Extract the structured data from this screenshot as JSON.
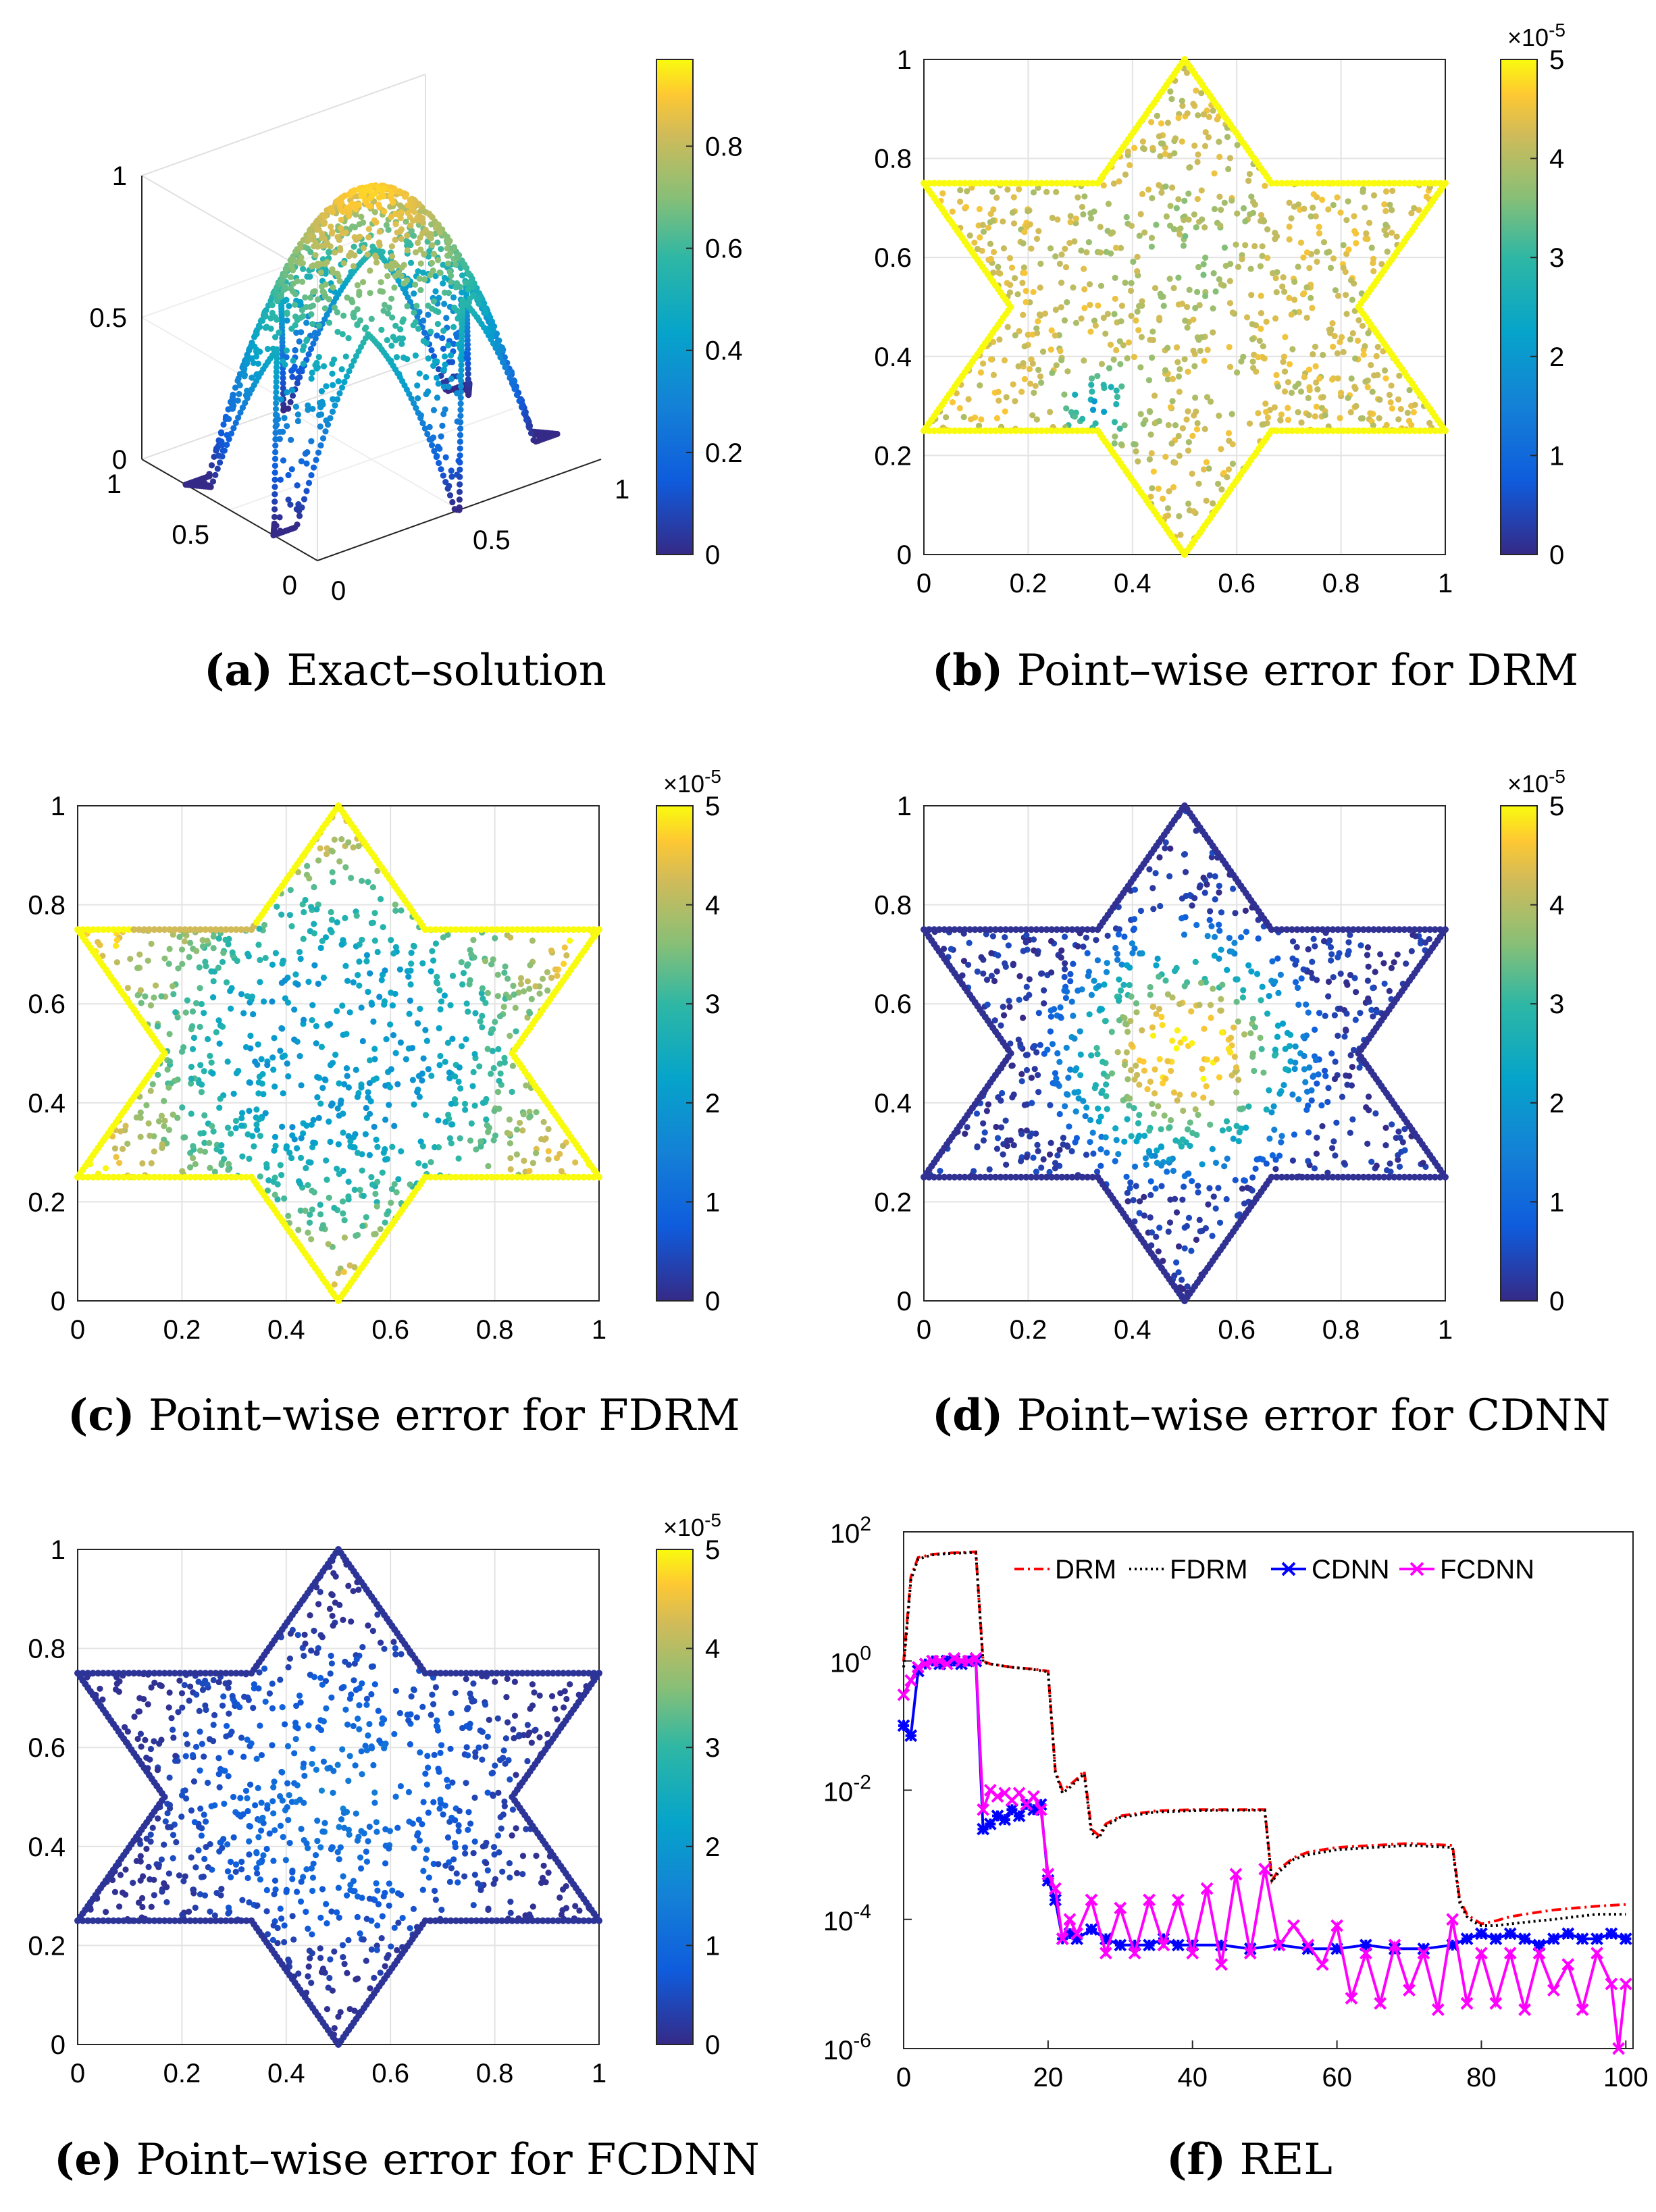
{
  "panels": [
    {
      "letter": "(a)",
      "caption": "Exact–solution",
      "kind": "surface3d",
      "chart_data": {
        "type": "scatter",
        "title": "",
        "z_ticks": [
          "0",
          "0.5",
          "1"
        ],
        "y_ticks": [
          "0",
          "0.5",
          "1"
        ],
        "x_ticks": [
          "0",
          "0.5",
          "1"
        ],
        "colorbar_ticks": [
          "0",
          "0.2",
          "0.4",
          "0.6",
          "0.8"
        ],
        "colorbar_range": [
          0,
          1
        ],
        "colorbar_exponent": ""
      }
    },
    {
      "letter": "(b)",
      "caption": "Point–wise error for DRM",
      "kind": "star",
      "chart_data": {
        "type": "scatter",
        "x_ticks": [
          "0",
          "0.2",
          "0.4",
          "0.6",
          "0.8",
          "1"
        ],
        "y_ticks": [
          "0",
          "0.2",
          "0.4",
          "0.6",
          "0.8",
          "1"
        ],
        "xlim": [
          0,
          1
        ],
        "ylim": [
          0,
          1
        ],
        "colorbar_ticks": [
          "0",
          "1",
          "2",
          "3",
          "4",
          "5"
        ],
        "colorbar_range": [
          0,
          5
        ],
        "colorbar_exponent": "×10-5",
        "error_pattern": "mostly high (yellow/orange); boundary saturated; low spot near lower-left interior"
      }
    },
    {
      "letter": "(c)",
      "caption": "Point–wise error for FDRM",
      "kind": "star",
      "chart_data": {
        "type": "scatter",
        "x_ticks": [
          "0",
          "0.2",
          "0.4",
          "0.6",
          "0.8",
          "1"
        ],
        "y_ticks": [
          "0",
          "0.2",
          "0.4",
          "0.6",
          "0.8",
          "1"
        ],
        "xlim": [
          0,
          1
        ],
        "ylim": [
          0,
          1
        ],
        "colorbar_ticks": [
          "0",
          "1",
          "2",
          "3",
          "4",
          "5"
        ],
        "colorbar_range": [
          0,
          5
        ],
        "colorbar_exponent": "×10-5",
        "error_pattern": "yellow boundary and tips; teal-blue interior"
      }
    },
    {
      "letter": "(d)",
      "caption": "Point–wise error for CDNN",
      "kind": "star",
      "chart_data": {
        "type": "scatter",
        "x_ticks": [
          "0",
          "0.2",
          "0.4",
          "0.6",
          "0.8",
          "1"
        ],
        "y_ticks": [
          "0",
          "0.2",
          "0.4",
          "0.6",
          "0.8",
          "1"
        ],
        "xlim": [
          0,
          1
        ],
        "ylim": [
          0,
          1
        ],
        "colorbar_ticks": [
          "0",
          "1",
          "2",
          "3",
          "4",
          "5"
        ],
        "colorbar_range": [
          0,
          5
        ],
        "colorbar_exponent": "×10-5",
        "error_pattern": "dark blue boundary and tips; yellow core near center"
      }
    },
    {
      "letter": "(e)",
      "caption": "Point–wise error for FCDNN",
      "kind": "star",
      "chart_data": {
        "type": "scatter",
        "x_ticks": [
          "0",
          "0.2",
          "0.4",
          "0.6",
          "0.8",
          "1"
        ],
        "y_ticks": [
          "0",
          "0.2",
          "0.4",
          "0.6",
          "0.8",
          "1"
        ],
        "xlim": [
          0,
          1
        ],
        "ylim": [
          0,
          1
        ],
        "colorbar_ticks": [
          "0",
          "1",
          "2",
          "3",
          "4",
          "5"
        ],
        "colorbar_range": [
          0,
          5
        ],
        "colorbar_exponent": "×10-5",
        "error_pattern": "uniformly low: dark blue boundary, blue interior"
      }
    },
    {
      "letter": "(f)",
      "caption": "REL",
      "kind": "line",
      "chart_data": {
        "type": "line",
        "x_ticks": [
          "0",
          "20",
          "40",
          "60",
          "80",
          "100"
        ],
        "xlim": [
          0,
          101
        ],
        "y_log": true,
        "ylim": [
          1e-06,
          100.0
        ],
        "y_ticks": [
          {
            "base": "10",
            "exp": "-6"
          },
          {
            "base": "10",
            "exp": "-4"
          },
          {
            "base": "10",
            "exp": "-2"
          },
          {
            "base": "10",
            "exp": "0"
          },
          {
            "base": "10",
            "exp": "2"
          }
        ],
        "legend_position": "top-right",
        "series": [
          {
            "name": "DRM",
            "color": "#ff0000",
            "style": "dash-dot",
            "x": [
              0,
              1,
              2,
              4,
              6,
              8,
              10,
              11,
              12,
              15,
              18,
              20,
              21,
              22,
              23,
              24,
              25,
              26,
              27,
              28,
              30,
              35,
              40,
              45,
              50,
              51,
              52,
              54,
              56,
              60,
              65,
              70,
              76,
              77,
              78,
              79,
              80,
              82,
              84,
              86,
              88,
              90,
              93,
              96,
              100
            ],
            "y": [
              1,
              20,
              40,
              45,
              47,
              48,
              49,
              1.0,
              0.9,
              0.8,
              0.75,
              0.7,
              0.02,
              0.01,
              0.012,
              0.015,
              0.02,
              0.0025,
              0.002,
              0.003,
              0.004,
              0.0048,
              0.005,
              0.005,
              0.005,
              0.0004,
              0.0006,
              0.0009,
              0.0011,
              0.0013,
              0.0014,
              0.0015,
              0.0014,
              0.0002,
              0.00012,
              0.0001,
              8.5e-05,
              9.5e-05,
              0.00011,
              0.00012,
              0.00013,
              0.00014,
              0.00015,
              0.00016,
              0.00017
            ]
          },
          {
            "name": "FDRM",
            "color": "#000000",
            "style": "dotted",
            "x": [
              0,
              1,
              2,
              4,
              6,
              8,
              10,
              11,
              12,
              15,
              18,
              20,
              21,
              22,
              23,
              24,
              25,
              26,
              27,
              28,
              30,
              35,
              40,
              45,
              50,
              51,
              52,
              54,
              56,
              60,
              65,
              70,
              76,
              77,
              78,
              79,
              80,
              82,
              84,
              86,
              88,
              90,
              93,
              96,
              100
            ],
            "y": [
              0.8,
              18,
              38,
              44,
              46,
              47,
              48,
              0.95,
              0.9,
              0.8,
              0.74,
              0.68,
              0.019,
              0.009,
              0.011,
              0.014,
              0.018,
              0.0022,
              0.0018,
              0.0028,
              0.0038,
              0.0046,
              0.0048,
              0.0049,
              0.0049,
              0.00038,
              0.00055,
              0.00085,
              0.001,
              0.0012,
              0.0013,
              0.0014,
              0.0013,
              0.00018,
              0.00011,
              9e-05,
              8e-05,
              8e-05,
              8.5e-05,
              9e-05,
              9.5e-05,
              0.0001,
              0.00011,
              0.00012,
              0.00012
            ]
          },
          {
            "name": "CDNN",
            "color": "#0000ff",
            "style": "solid-star",
            "x": [
              0,
              1,
              2,
              3,
              4,
              5,
              6,
              7,
              8,
              9,
              10,
              11,
              12,
              13,
              14,
              15,
              16,
              17,
              18,
              19,
              20,
              21,
              22,
              23,
              24,
              26,
              28,
              30,
              32,
              34,
              36,
              38,
              40,
              44,
              48,
              52,
              56,
              60,
              64,
              68,
              72,
              76,
              78,
              80,
              82,
              84,
              86,
              88,
              90,
              92,
              94,
              96,
              98,
              100
            ],
            "y": [
              0.1,
              0.07,
              0.7,
              0.9,
              1.0,
              0.9,
              1.0,
              1.0,
              0.9,
              1.0,
              1.0,
              0.0025,
              0.003,
              0.004,
              0.0035,
              0.005,
              0.004,
              0.006,
              0.005,
              0.006,
              0.0004,
              0.0002,
              5e-05,
              6e-05,
              5e-05,
              7e-05,
              5e-05,
              4e-05,
              4e-05,
              4e-05,
              5e-05,
              4e-05,
              4e-05,
              4e-05,
              3.5e-05,
              4e-05,
              3.5e-05,
              3.5e-05,
              4e-05,
              3.5e-05,
              3.5e-05,
              4e-05,
              5e-05,
              6e-05,
              5e-05,
              6e-05,
              5e-05,
              4e-05,
              5e-05,
              6e-05,
              5e-05,
              5e-05,
              6e-05,
              5e-05
            ]
          },
          {
            "name": "FCDNN",
            "color": "#ff00ff",
            "style": "solid-x",
            "x": [
              0,
              1,
              2,
              3,
              4,
              5,
              6,
              7,
              8,
              9,
              10,
              11,
              12,
              13,
              14,
              15,
              16,
              17,
              18,
              19,
              20,
              21,
              22,
              23,
              24,
              26,
              28,
              30,
              32,
              34,
              36,
              38,
              40,
              42,
              44,
              46,
              48,
              50,
              52,
              54,
              56,
              58,
              60,
              62,
              64,
              66,
              68,
              70,
              72,
              74,
              76,
              78,
              80,
              82,
              84,
              86,
              88,
              90,
              92,
              94,
              96,
              98,
              99,
              100
            ],
            "y": [
              0.3,
              0.5,
              0.8,
              0.9,
              1.0,
              1.0,
              0.9,
              1.1,
              1.0,
              1.0,
              1.1,
              0.005,
              0.01,
              0.008,
              0.009,
              0.007,
              0.009,
              0.006,
              0.008,
              0.005,
              0.0005,
              0.0003,
              5e-05,
              0.0001,
              6e-05,
              0.0002,
              3e-05,
              0.00015,
              3e-05,
              0.0002,
              4e-05,
              0.0002,
              3e-05,
              0.0003,
              2e-05,
              0.0005,
              3e-05,
              0.0006,
              4e-05,
              8e-05,
              4e-05,
              2e-05,
              8e-05,
              6e-06,
              3e-05,
              5e-06,
              4e-05,
              8e-06,
              3e-05,
              4e-06,
              0.0001,
              5e-06,
              3e-05,
              5e-06,
              3e-05,
              4e-06,
              3e-05,
              8e-06,
              2e-05,
              4e-06,
              3e-05,
              1e-05,
              1e-06,
              1e-05
            ]
          }
        ]
      }
    }
  ]
}
